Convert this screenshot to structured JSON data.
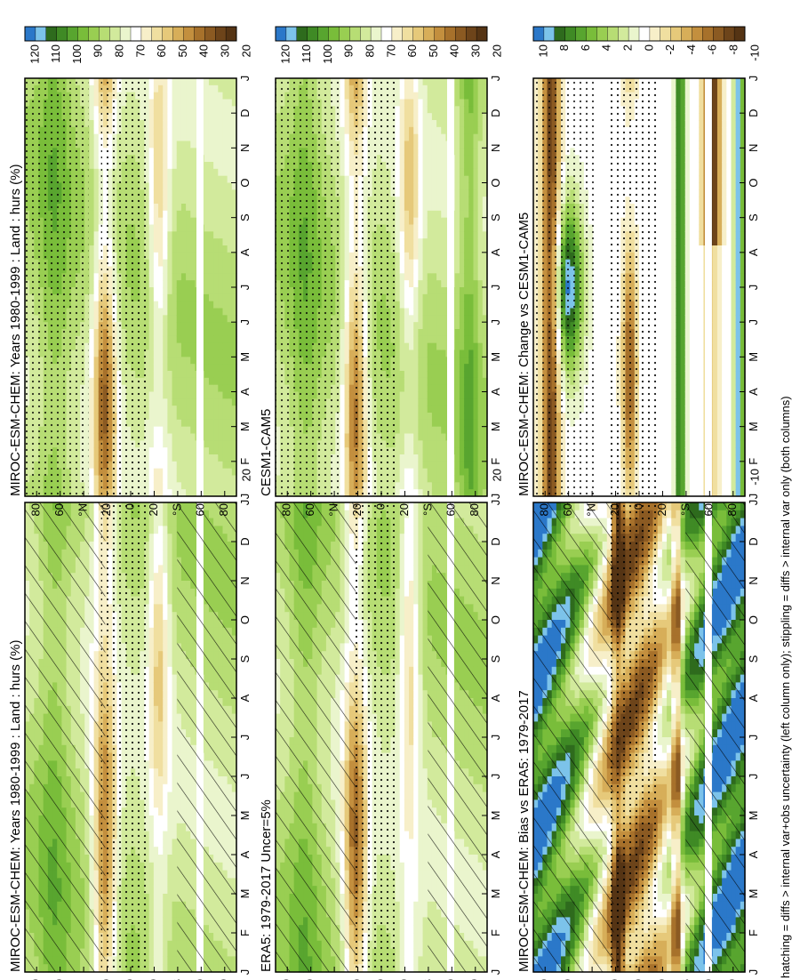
{
  "footnote": "hatching = diffs > internal var+obs uncertainty (left column only); stippling = diffs > internal var only (both columns)",
  "colors": {
    "main": [
      "#2b78c9",
      "#7cc3ea",
      "#2e6b1d",
      "#3f8a25",
      "#58a52f",
      "#79bd3a",
      "#99ce52",
      "#b7dd74",
      "#d2ea9c",
      "#eaf5cd",
      "#ffffff",
      "#f7efc9",
      "#f0dfa0",
      "#e6c97a",
      "#d7ae59",
      "#c38f3e",
      "#a7712b",
      "#8b5a22",
      "#6d441a",
      "#553414"
    ],
    "diff": [
      "#2b78c9",
      "#7cc3ea",
      "#2e6b1d",
      "#3f8a25",
      "#58a52f",
      "#79bd3a",
      "#99ce52",
      "#b7dd74",
      "#d2ea9c",
      "#eaf5cd",
      "#ffffff",
      "#f7efc9",
      "#f0dfa0",
      "#e6c97a",
      "#d7ae59",
      "#c38f3e",
      "#a7712b",
      "#8b5a22",
      "#6d441a",
      "#553414"
    ]
  },
  "colorbars": {
    "main_labels": [
      "120",
      "110",
      "100",
      "90",
      "80",
      "70",
      "60",
      "50",
      "40",
      "30",
      "20"
    ],
    "diff_labels": [
      "10",
      "8",
      "6",
      "4",
      "2",
      "0",
      "-2",
      "-4",
      "-6",
      "-8",
      "-10"
    ]
  },
  "chart_data": [
    {
      "type": "heatmap",
      "panel": "left-top",
      "title": "MIROC-ESM-CHEM: Years 1980-1999 : Land : hurs (%)",
      "x": [
        "J",
        "F",
        "M",
        "A",
        "M",
        "J",
        "J",
        "A",
        "S",
        "O",
        "N",
        "D",
        "J"
      ],
      "y": [
        "D",
        "80",
        "60",
        "°N",
        "20",
        "0",
        "20",
        "°S",
        "60",
        "80"
      ],
      "colorbar": [
        120,
        110,
        100,
        90,
        80,
        70,
        60,
        50,
        40,
        30,
        20
      ],
      "hatching": true,
      "stippling": true
    },
    {
      "type": "heatmap",
      "panel": "left-middle",
      "title": "ERA5: 1979-2017 Uncer=5%",
      "x": [
        "J",
        "F",
        "M",
        "A",
        "M",
        "J",
        "J",
        "A",
        "S",
        "O",
        "N",
        "D",
        "J"
      ],
      "y": [
        "D",
        "80",
        "60",
        "°N",
        "20",
        "0",
        "20",
        "°S",
        "60",
        "80"
      ],
      "colorbar": [
        120,
        110,
        100,
        90,
        80,
        70,
        60,
        50,
        40,
        30,
        20
      ],
      "hatching": true,
      "stippling": true
    },
    {
      "type": "heatmap",
      "panel": "left-bottom",
      "title": "MIROC-ESM-CHEM: Bias vs ERA5: 1979-2017",
      "x": [
        "J",
        "F",
        "M",
        "A",
        "M",
        "J",
        "J",
        "A",
        "S",
        "O",
        "N",
        "D",
        "J"
      ],
      "y": [
        "D",
        "80",
        "60",
        "°N",
        "20",
        "0",
        "20",
        "°S",
        "60",
        "80"
      ],
      "colorbar": [
        10,
        8,
        6,
        4,
        2,
        0,
        -2,
        -4,
        -6,
        -8,
        -10
      ],
      "hatching": true,
      "stippling": true
    },
    {
      "type": "heatmap",
      "panel": "right-top",
      "title": "MIROC-ESM-CHEM: Years 1980-1999 : Land : hurs (%)",
      "x": [
        "J",
        "F",
        "M",
        "A",
        "M",
        "J",
        "J",
        "A",
        "S",
        "O",
        "N",
        "D",
        "J"
      ],
      "y": [
        "D",
        "80",
        "60",
        "°N",
        "20",
        "0",
        "20",
        "°S",
        "60",
        "80"
      ],
      "colorbar": [
        120,
        110,
        100,
        90,
        80,
        70,
        60,
        50,
        40,
        30,
        20
      ],
      "hatching": false,
      "stippling": true
    },
    {
      "type": "heatmap",
      "panel": "right-middle",
      "title": "CESM1-CAM5",
      "x": [
        "J",
        "F",
        "M",
        "A",
        "M",
        "J",
        "J",
        "A",
        "S",
        "O",
        "N",
        "D",
        "J"
      ],
      "y": [
        "D",
        "80",
        "60",
        "°N",
        "20",
        "0",
        "20",
        "°S",
        "60",
        "80"
      ],
      "colorbar": [
        120,
        110,
        100,
        90,
        80,
        70,
        60,
        50,
        40,
        30,
        20
      ],
      "hatching": false,
      "stippling": true
    },
    {
      "type": "heatmap",
      "panel": "right-bottom",
      "title": "MIROC-ESM-CHEM: Change vs CESM1-CAM5",
      "x": [
        "J",
        "F",
        "M",
        "A",
        "M",
        "J",
        "J",
        "A",
        "S",
        "O",
        "N",
        "D",
        "J"
      ],
      "y": [
        "D",
        "80",
        "60",
        "°N",
        "20",
        "0",
        "20",
        "°S",
        "60",
        "80"
      ],
      "colorbar": [
        10,
        8,
        6,
        4,
        2,
        0,
        -2,
        -4,
        -6,
        -8,
        -10
      ],
      "hatching": false,
      "stippling": true
    }
  ]
}
